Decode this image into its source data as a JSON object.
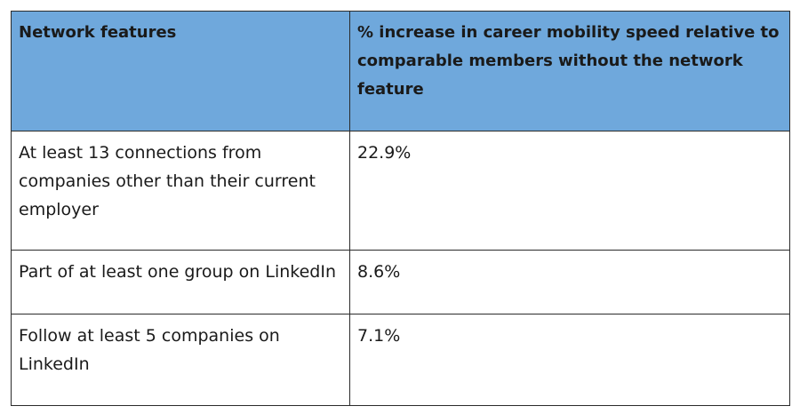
{
  "table": {
    "headers": [
      "Network features",
      "% increase in career mobility speed relative to comparable members without the network feature"
    ],
    "rows": [
      {
        "feature": "At least 13 connections from companies other than their current employer",
        "increase": "22.9%"
      },
      {
        "feature": "Part of at least one group on LinkedIn",
        "increase": "8.6%"
      },
      {
        "feature": "Follow at least 5 companies on LinkedIn",
        "increase": "7.1%"
      }
    ],
    "header_color": "#6fa8dc"
  }
}
